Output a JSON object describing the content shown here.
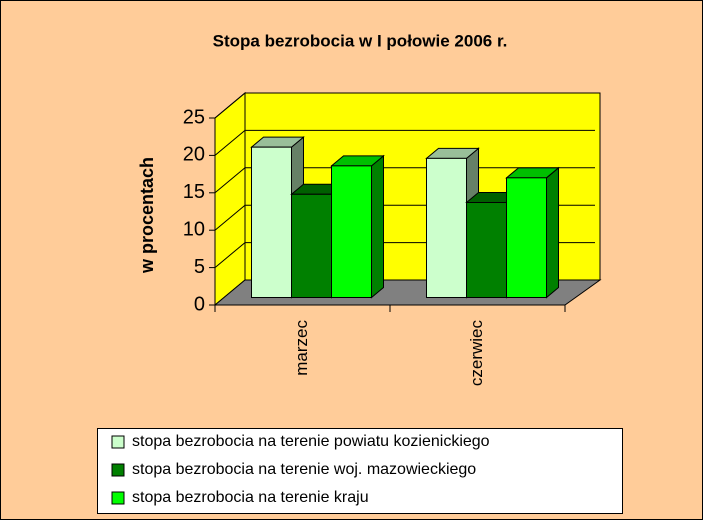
{
  "chart_data": {
    "type": "bar3d",
    "title": "Stopa bezrobocia w I połowie 2006 r.",
    "y_label": "w procentach",
    "categories": [
      "marzec",
      "czerwiec"
    ],
    "series": [
      {
        "name": "stopa bezrobocia na terenie powiatu kozienickiego",
        "color": "#CCFFCC",
        "values": [
          20.1,
          18.6
        ]
      },
      {
        "name": "stopa bezrobocia na terenie woj. mazowieckiego",
        "color": "#008000",
        "values": [
          13.8,
          12.7
        ]
      },
      {
        "name": "stopa bezrobocia na terenie kraju",
        "color": "#00FF00",
        "values": [
          17.6,
          16.0
        ]
      }
    ],
    "ylim": [
      0,
      25
    ],
    "yticks": [
      0,
      5,
      10,
      15,
      20,
      25
    ],
    "grid": true,
    "legend": "bottom"
  }
}
